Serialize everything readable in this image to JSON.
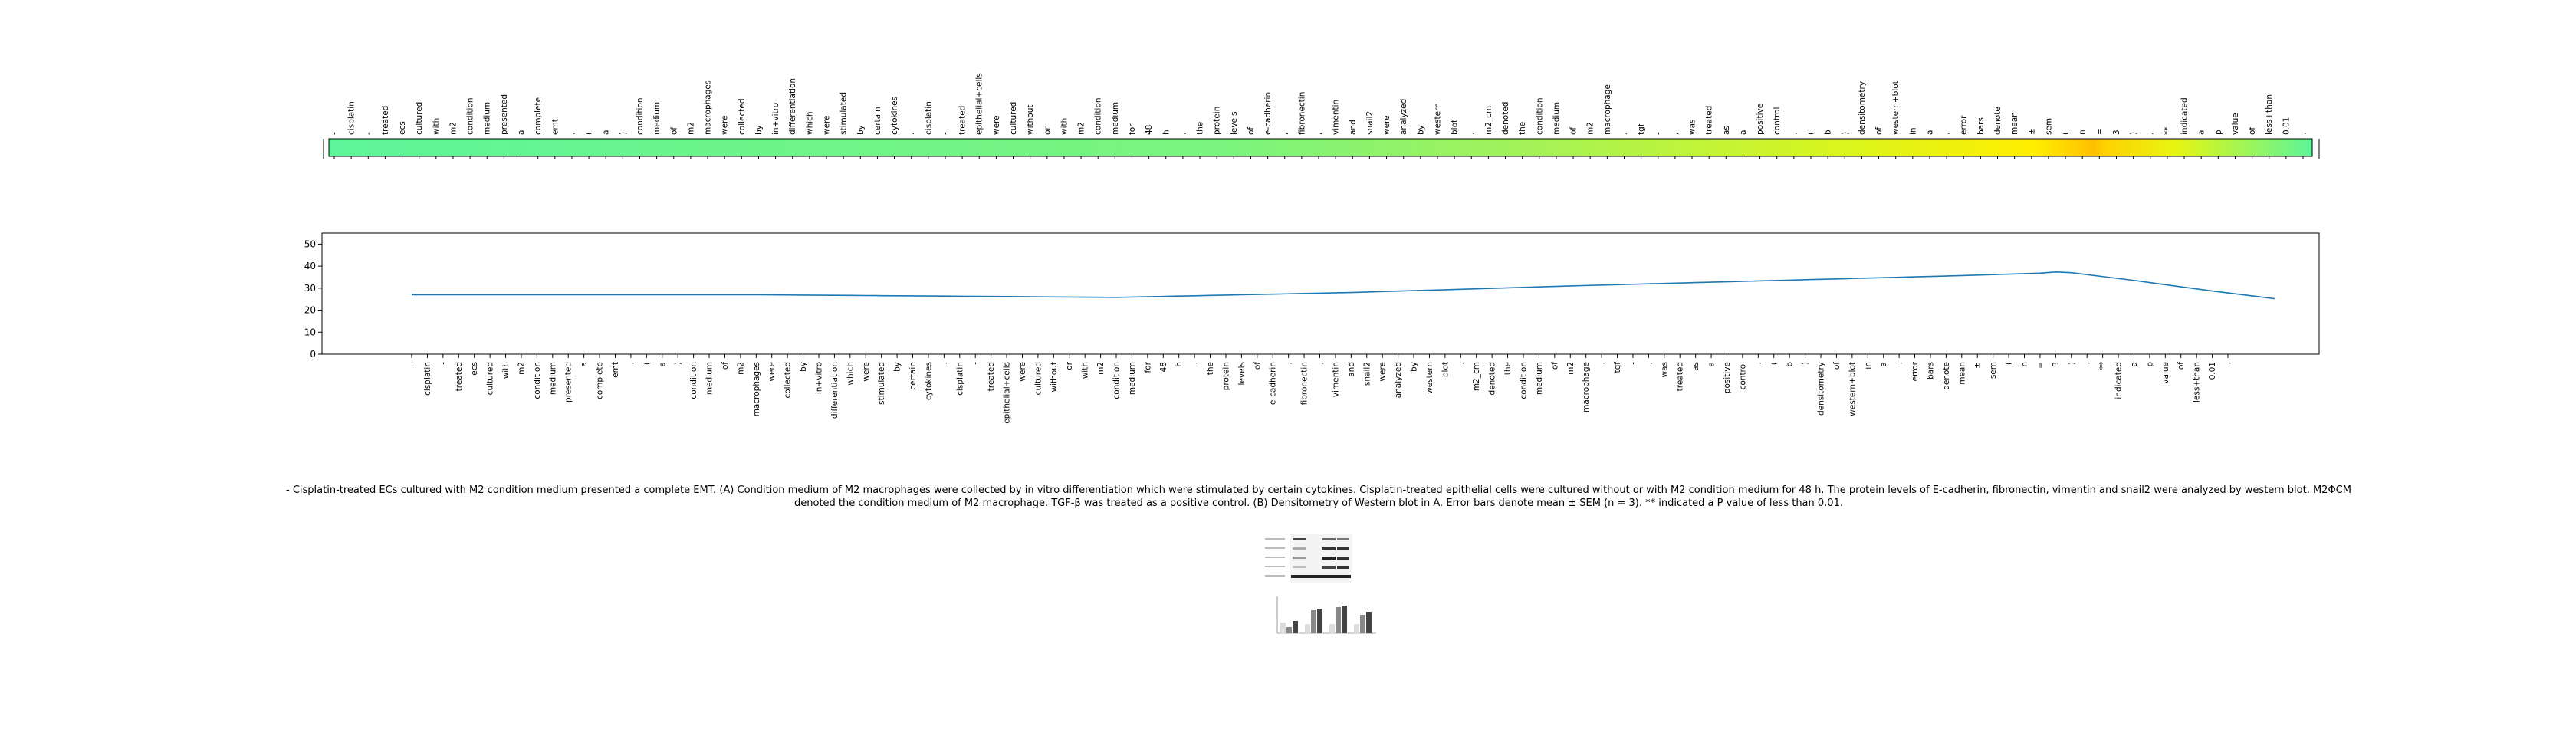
{
  "caption": "- Cisplatin-treated ECs cultured with M2 condition medium presented a complete EMT. (A) Condition medium of M2 macrophages were collected by in vitro differentiation which were stimulated by certain cytokines. Cisplatin-treated epithelial cells were cultured without or with M2 condition medium for 48 h. The protein levels of E-cadherin, fibronectin, vimentin and snail2 were analyzed by western blot. M2ΦCM denoted the condition medium of M2 macrophage. TGF-β was treated as a positive control. (B) Densitometry of Western blot in A. Error bars denote mean ± SEM (n = 3). ** indicated a P value of less than 0.01.",
  "chart_data": [
    {
      "type": "heatmap",
      "tokens": [
        "-",
        "cisplatin",
        "-",
        "treated",
        "ecs",
        "cultured",
        "with",
        "m2",
        "condition",
        "medium",
        "presented",
        "a",
        "complete",
        "emt",
        ".",
        "(",
        "a",
        ")",
        "condition",
        "medium",
        "of",
        "m2",
        "macrophages",
        "were",
        "collected",
        "by",
        "in+vitro",
        "differentiation",
        "which",
        "were",
        "stimulated",
        "by",
        "certain",
        "cytokines",
        ".",
        "cisplatin",
        "-",
        "treated",
        "epithelial+cells",
        "were",
        "cultured",
        "without",
        "or",
        "with",
        "m2",
        "condition",
        "medium",
        "for",
        "48",
        "h",
        ".",
        "the",
        "protein",
        "levels",
        "of",
        "e-cadherin",
        ",",
        "fibronectin",
        ",",
        "vimentin",
        "and",
        "snail2",
        "were",
        "analyzed",
        "by",
        "western",
        "blot",
        ".",
        "m2_cm",
        "denoted",
        "the",
        "condition",
        "medium",
        "of",
        "m2",
        "macrophage",
        ".",
        "tgf",
        "-",
        ",",
        "was",
        "treated",
        "as",
        "a",
        "positive",
        "control",
        ".",
        "(",
        "b",
        ")",
        "densitometry",
        "of",
        "western+blot",
        "in",
        "a",
        ".",
        "error",
        "bars",
        "denote",
        "mean",
        "±",
        "sem",
        "(",
        "n",
        "=",
        "3",
        ")",
        ".",
        "**",
        "indicated",
        "a",
        "p",
        "value",
        "of",
        "less+than",
        "0.01",
        "."
      ]
    },
    {
      "type": "line",
      "ylim": [
        0,
        55
      ],
      "yticks": [
        0,
        10,
        20,
        30,
        40,
        50
      ],
      "grid": false,
      "tokens": [
        "-",
        "cisplatin",
        "-",
        "treated",
        "ecs",
        "cultured",
        "with",
        "m2",
        "condition",
        "medium",
        "presented",
        "a",
        "complete",
        "emt",
        ".",
        "(",
        "a",
        ")",
        "condition",
        "medium",
        "of",
        "m2",
        "macrophages",
        "were",
        "collected",
        "by",
        "in+vitro",
        "differentiation",
        "which",
        "were",
        "stimulated",
        "by",
        "certain",
        "cytokines",
        ".",
        "cisplatin",
        "-",
        "treated",
        "epithelial+cells",
        "were",
        "cultured",
        "without",
        "or",
        "with",
        "m2",
        "condition",
        "medium",
        "for",
        "48",
        "h",
        ".",
        "the",
        "protein",
        "levels",
        "of",
        "e-cadherin",
        ",",
        "fibronectin",
        ",",
        "vimentin",
        "and",
        "snail2",
        "were",
        "analyzed",
        "by",
        "western",
        "blot",
        ".",
        "m2_cm",
        "denoted",
        "the",
        "condition",
        "medium",
        "of",
        "m2",
        "macrophage",
        ".",
        "tgf",
        "-",
        ",",
        "was",
        "treated",
        "as",
        "a",
        "positive",
        "control",
        ".",
        "(",
        "b",
        ")",
        "densitometry",
        "of",
        "western+blot",
        "in",
        "a",
        ".",
        "error",
        "bars",
        "denote",
        "mean",
        "±",
        "sem",
        "(",
        "n",
        "=",
        "3",
        ")",
        ".",
        "**",
        "indicated",
        "a",
        "p",
        "value",
        "of",
        "less+than",
        "0.01",
        "."
      ],
      "series": [
        {
          "anchors": [
            [
              0,
              27
            ],
            [
              22,
              27
            ],
            [
              45,
              25.8
            ],
            [
              60,
              28
            ],
            [
              75,
              31.2
            ],
            [
              98,
              35.5
            ],
            [
              104,
              36.8
            ],
            [
              105,
              37.3
            ],
            [
              106,
              37
            ],
            [
              110,
              33.5
            ],
            [
              115,
              28.7
            ],
            [
              119,
              25.2
            ]
          ]
        }
      ]
    }
  ]
}
